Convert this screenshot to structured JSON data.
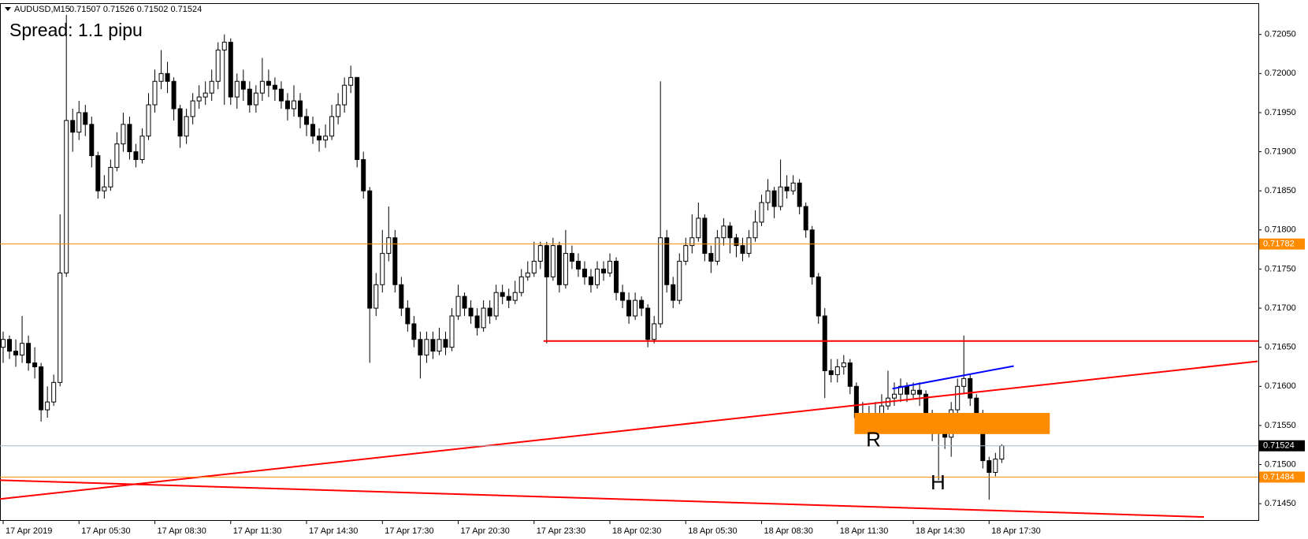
{
  "chart_data": {
    "type": "candlestick",
    "title": "AUDUSD,M15",
    "quote": "0.71507 0.71526 0.71502 0.71524",
    "annotation": "Spread: 1.1 pipu",
    "up_color": "#ffffff",
    "down_color": "#000000",
    "open": [
      0.7165,
      0.7166,
      0.71645,
      0.7164,
      0.71655,
      0.7163,
      0.71625,
      0.7157,
      0.7158,
      0.71605,
      0.71745,
      0.7194,
      0.71925,
      0.7195,
      0.71935,
      0.71895,
      0.7185,
      0.71855,
      0.7188,
      0.7191,
      0.71935,
      0.719,
      0.7189,
      0.7192,
      0.7196,
      0.7199,
      0.72,
      0.7199,
      0.71955,
      0.7192,
      0.71945,
      0.71965,
      0.7197,
      0.71975,
      0.7199,
      0.7203,
      0.7204,
      0.7197,
      0.7199,
      0.7198,
      0.7196,
      0.71975,
      0.7199,
      0.71985,
      0.7198,
      0.71965,
      0.71955,
      0.71965,
      0.71945,
      0.71935,
      0.7192,
      0.71915,
      0.7192,
      0.71945,
      0.7196,
      0.71985,
      0.71995,
      0.7189,
      0.7185,
      0.717,
      0.7173,
      0.7177,
      0.7179,
      0.7173,
      0.717,
      0.7168,
      0.7166,
      0.7164,
      0.7166,
      0.71645,
      0.7166,
      0.7165,
      0.7169,
      0.71715,
      0.717,
      0.7169,
      0.71675,
      0.717,
      0.7169,
      0.7172,
      0.71715,
      0.7171,
      0.7172,
      0.7174,
      0.71745,
      0.7176,
      0.7178,
      0.7174,
      0.7178,
      0.7173,
      0.7177,
      0.7176,
      0.7175,
      0.7174,
      0.7173,
      0.7175,
      0.71745,
      0.7176,
      0.7172,
      0.7171,
      0.7169,
      0.7171,
      0.717,
      0.7166,
      0.7168,
      0.7179,
      0.7173,
      0.7171,
      0.7176,
      0.7178,
      0.7179,
      0.71815,
      0.7177,
      0.7176,
      0.7179,
      0.71805,
      0.7179,
      0.7178,
      0.7177,
      0.7179,
      0.7181,
      0.71835,
      0.7185,
      0.7183,
      0.71855,
      0.7185,
      0.7186,
      0.7183,
      0.718,
      0.7174,
      0.7169,
      0.7162,
      0.71615,
      0.71625,
      0.7163,
      0.716,
      0.7156,
      0.71565,
      0.7156,
      0.71565,
      0.71575,
      0.71585,
      0.7159,
      0.716,
      0.7159,
      0.71595,
      0.7159,
      0.7156,
      0.71545,
      0.7154,
      0.71535,
      0.7157,
      0.716,
      0.7161,
      0.71585,
      0.71565,
      0.71505,
      0.7149,
      0.71507
    ],
    "high": [
      0.7167,
      0.71665,
      0.7166,
      0.7169,
      0.71665,
      0.7165,
      0.7163,
      0.716,
      0.71615,
      0.7182,
      0.72075,
      0.71955,
      0.71965,
      0.7196,
      0.71945,
      0.719,
      0.7187,
      0.7189,
      0.71925,
      0.7195,
      0.71945,
      0.7191,
      0.7193,
      0.71975,
      0.72005,
      0.7203,
      0.72015,
      0.71995,
      0.7196,
      0.71955,
      0.71975,
      0.71985,
      0.7199,
      0.72005,
      0.7204,
      0.7205,
      0.72045,
      0.72,
      0.72005,
      0.7199,
      0.71985,
      0.7202,
      0.72005,
      0.71995,
      0.7199,
      0.71975,
      0.71985,
      0.71975,
      0.71955,
      0.71945,
      0.7193,
      0.71935,
      0.7196,
      0.71975,
      0.71995,
      0.7201,
      0.71995,
      0.719,
      0.71855,
      0.71745,
      0.718,
      0.7183,
      0.718,
      0.7174,
      0.7171,
      0.7169,
      0.7167,
      0.7167,
      0.7167,
      0.71675,
      0.7167,
      0.717,
      0.7173,
      0.7172,
      0.7171,
      0.717,
      0.7171,
      0.7171,
      0.7173,
      0.7173,
      0.71725,
      0.71735,
      0.7175,
      0.7176,
      0.71785,
      0.71785,
      0.71785,
      0.7179,
      0.71785,
      0.718,
      0.7178,
      0.7177,
      0.7176,
      0.7175,
      0.7176,
      0.7176,
      0.7177,
      0.71765,
      0.7173,
      0.7172,
      0.7172,
      0.71715,
      0.71705,
      0.7169,
      0.7199,
      0.718,
      0.7174,
      0.7177,
      0.7179,
      0.7182,
      0.71835,
      0.7182,
      0.7178,
      0.718,
      0.71815,
      0.7181,
      0.71795,
      0.7179,
      0.718,
      0.71825,
      0.71845,
      0.71865,
      0.71855,
      0.7189,
      0.7187,
      0.7187,
      0.71865,
      0.71835,
      0.71805,
      0.71745,
      0.717,
      0.71635,
      0.71635,
      0.7164,
      0.71635,
      0.71605,
      0.7158,
      0.71575,
      0.7158,
      0.7159,
      0.7162,
      0.71605,
      0.7161,
      0.71605,
      0.71605,
      0.71605,
      0.71595,
      0.7157,
      0.7156,
      0.7155,
      0.7158,
      0.7161,
      0.71665,
      0.71615,
      0.7159,
      0.7157,
      0.7151,
      0.71515,
      0.71526
    ],
    "low": [
      0.7163,
      0.71635,
      0.71625,
      0.7163,
      0.7162,
      0.7161,
      0.71555,
      0.7156,
      0.71575,
      0.716,
      0.7174,
      0.719,
      0.71915,
      0.7192,
      0.7188,
      0.7184,
      0.7184,
      0.7185,
      0.71875,
      0.719,
      0.7189,
      0.7188,
      0.71885,
      0.71915,
      0.7195,
      0.7198,
      0.71975,
      0.7194,
      0.71905,
      0.7191,
      0.71935,
      0.71955,
      0.7196,
      0.71965,
      0.7198,
      0.7196,
      0.7196,
      0.71955,
      0.71965,
      0.7195,
      0.7195,
      0.71965,
      0.7197,
      0.71965,
      0.71955,
      0.7194,
      0.71945,
      0.7193,
      0.7192,
      0.7191,
      0.719,
      0.71905,
      0.71915,
      0.71935,
      0.7195,
      0.71975,
      0.7188,
      0.7184,
      0.7163,
      0.7169,
      0.7172,
      0.7176,
      0.7172,
      0.7169,
      0.7167,
      0.7165,
      0.7161,
      0.7163,
      0.71635,
      0.7164,
      0.7164,
      0.71645,
      0.71685,
      0.7169,
      0.7168,
      0.71665,
      0.7167,
      0.7168,
      0.71685,
      0.71705,
      0.717,
      0.71705,
      0.71715,
      0.71735,
      0.7174,
      0.7175,
      0.71655,
      0.71735,
      0.7172,
      0.71725,
      0.7175,
      0.7174,
      0.7173,
      0.7172,
      0.71725,
      0.71735,
      0.7174,
      0.7171,
      0.717,
      0.7168,
      0.71685,
      0.7169,
      0.7165,
      0.71655,
      0.71675,
      0.7172,
      0.717,
      0.71705,
      0.71755,
      0.7177,
      0.71785,
      0.7176,
      0.71745,
      0.71755,
      0.7178,
      0.7177,
      0.71765,
      0.7176,
      0.71765,
      0.71785,
      0.71805,
      0.71825,
      0.71815,
      0.71825,
      0.7184,
      0.71845,
      0.7182,
      0.7179,
      0.7173,
      0.7168,
      0.71585,
      0.71605,
      0.71605,
      0.71615,
      0.7159,
      0.71545,
      0.71545,
      0.7155,
      0.71545,
      0.7156,
      0.7157,
      0.71575,
      0.7158,
      0.7158,
      0.71585,
      0.71575,
      0.7155,
      0.7153,
      0.7148,
      0.7152,
      0.7151,
      0.7156,
      0.7159,
      0.71575,
      0.71555,
      0.71495,
      0.71455,
      0.71485,
      0.71502
    ],
    "close": [
      0.7166,
      0.71645,
      0.7164,
      0.71655,
      0.7163,
      0.71625,
      0.7157,
      0.7158,
      0.71605,
      0.71745,
      0.7194,
      0.71925,
      0.7195,
      0.71935,
      0.71895,
      0.7185,
      0.71855,
      0.7188,
      0.7191,
      0.71935,
      0.719,
      0.7189,
      0.7192,
      0.7196,
      0.7199,
      0.72,
      0.7199,
      0.71955,
      0.7192,
      0.71945,
      0.71965,
      0.7197,
      0.71975,
      0.7199,
      0.7203,
      0.7204,
      0.7197,
      0.7199,
      0.7198,
      0.7196,
      0.71975,
      0.7199,
      0.71985,
      0.7198,
      0.71965,
      0.71955,
      0.71965,
      0.71945,
      0.71935,
      0.7192,
      0.71915,
      0.7192,
      0.71945,
      0.7196,
      0.71985,
      0.71995,
      0.7189,
      0.7185,
      0.717,
      0.7173,
      0.7177,
      0.7179,
      0.7173,
      0.717,
      0.7168,
      0.7166,
      0.7164,
      0.7166,
      0.71645,
      0.7166,
      0.7165,
      0.7169,
      0.71715,
      0.717,
      0.7169,
      0.71675,
      0.717,
      0.7169,
      0.7172,
      0.71715,
      0.7171,
      0.7172,
      0.7174,
      0.71745,
      0.7176,
      0.7178,
      0.7174,
      0.7178,
      0.7173,
      0.7177,
      0.7176,
      0.7175,
      0.7174,
      0.7173,
      0.7175,
      0.71745,
      0.7176,
      0.7172,
      0.7171,
      0.7169,
      0.7171,
      0.717,
      0.7166,
      0.7168,
      0.7179,
      0.7173,
      0.7171,
      0.7176,
      0.7178,
      0.7179,
      0.71815,
      0.7177,
      0.7176,
      0.7179,
      0.71805,
      0.7179,
      0.7178,
      0.7177,
      0.7179,
      0.7181,
      0.71835,
      0.7185,
      0.7183,
      0.71855,
      0.7185,
      0.7186,
      0.7183,
      0.718,
      0.7174,
      0.7169,
      0.7162,
      0.71615,
      0.71625,
      0.7163,
      0.716,
      0.7156,
      0.71565,
      0.7156,
      0.71565,
      0.71575,
      0.71585,
      0.7159,
      0.716,
      0.7159,
      0.71595,
      0.7159,
      0.7156,
      0.71545,
      0.7154,
      0.71535,
      0.7157,
      0.716,
      0.7161,
      0.71585,
      0.71565,
      0.71505,
      0.7149,
      0.71507,
      0.71524
    ],
    "xlim": [
      -0.5,
      198.6
    ],
    "ylim": [
      0.71429,
      0.7209
    ],
    "xticks": [
      {
        "value": 0,
        "label": "17 Apr 2019"
      },
      {
        "value": 12,
        "label": "17 Apr 05:30"
      },
      {
        "value": 24,
        "label": "17 Apr 08:30"
      },
      {
        "value": 36,
        "label": "17 Apr 11:30"
      },
      {
        "value": 48,
        "label": "17 Apr 14:30"
      },
      {
        "value": 60,
        "label": "17 Apr 17:30"
      },
      {
        "value": 72,
        "label": "17 Apr 20:30"
      },
      {
        "value": 84,
        "label": "17 Apr 23:30"
      },
      {
        "value": 96,
        "label": "18 Apr 02:30"
      },
      {
        "value": 108,
        "label": "18 Apr 05:30"
      },
      {
        "value": 120,
        "label": "18 Apr 08:30"
      },
      {
        "value": 132,
        "label": "18 Apr 11:30"
      },
      {
        "value": 144,
        "label": "18 Apr 14:30"
      },
      {
        "value": 156,
        "label": "18 Apr 17:30"
      }
    ],
    "yticks": [
      {
        "value": 0.7145,
        "label": "0.71450"
      },
      {
        "value": 0.715,
        "label": "0.71500"
      },
      {
        "value": 0.7155,
        "label": "0.71550"
      },
      {
        "value": 0.716,
        "label": "0.71600"
      },
      {
        "value": 0.7165,
        "label": "0.71650"
      },
      {
        "value": 0.717,
        "label": "0.71700"
      },
      {
        "value": 0.7175,
        "label": "0.71750"
      },
      {
        "value": 0.718,
        "label": "0.71800"
      },
      {
        "value": 0.7185,
        "label": "0.71850"
      },
      {
        "value": 0.719,
        "label": "0.71900"
      },
      {
        "value": 0.7195,
        "label": "0.71950"
      },
      {
        "value": 0.72,
        "label": "0.72000"
      },
      {
        "value": 0.7205,
        "label": "0.72050"
      }
    ],
    "hlines": [
      {
        "value": 0.71782,
        "color": "#ff8c00",
        "label_color": "#ff8c00"
      },
      {
        "value": 0.71484,
        "color": "#ff8c00",
        "label_color": "#ff8c00"
      },
      {
        "value": 0.71524,
        "color": "#a9b8c3",
        "label_color": "#000000"
      }
    ],
    "segments": [
      {
        "x": [
          85.5,
          198.6
        ],
        "y": [
          0.71658,
          0.71658
        ],
        "color": "#ff0000"
      },
      {
        "x": [
          -0.5,
          198.5
        ],
        "y": [
          0.71456,
          0.71632
        ],
        "color": "#ff0000"
      },
      {
        "x": [
          -0.5,
          190
        ],
        "y": [
          0.7148,
          0.71433
        ],
        "color": "#ff0000"
      },
      {
        "x": [
          140.7,
          159.9
        ],
        "y": [
          0.71597,
          0.71626
        ],
        "color": "#0000ff"
      }
    ],
    "rect": {
      "x": [
        134.7,
        165.6
      ],
      "y": [
        0.71539,
        0.71566
      ],
      "color": "#ff8c00"
    },
    "texts": [
      {
        "text": "R",
        "x": 137.7,
        "y": 0.7153
      },
      {
        "text": "H",
        "x": 147.9,
        "y": 0.71475
      }
    ]
  }
}
